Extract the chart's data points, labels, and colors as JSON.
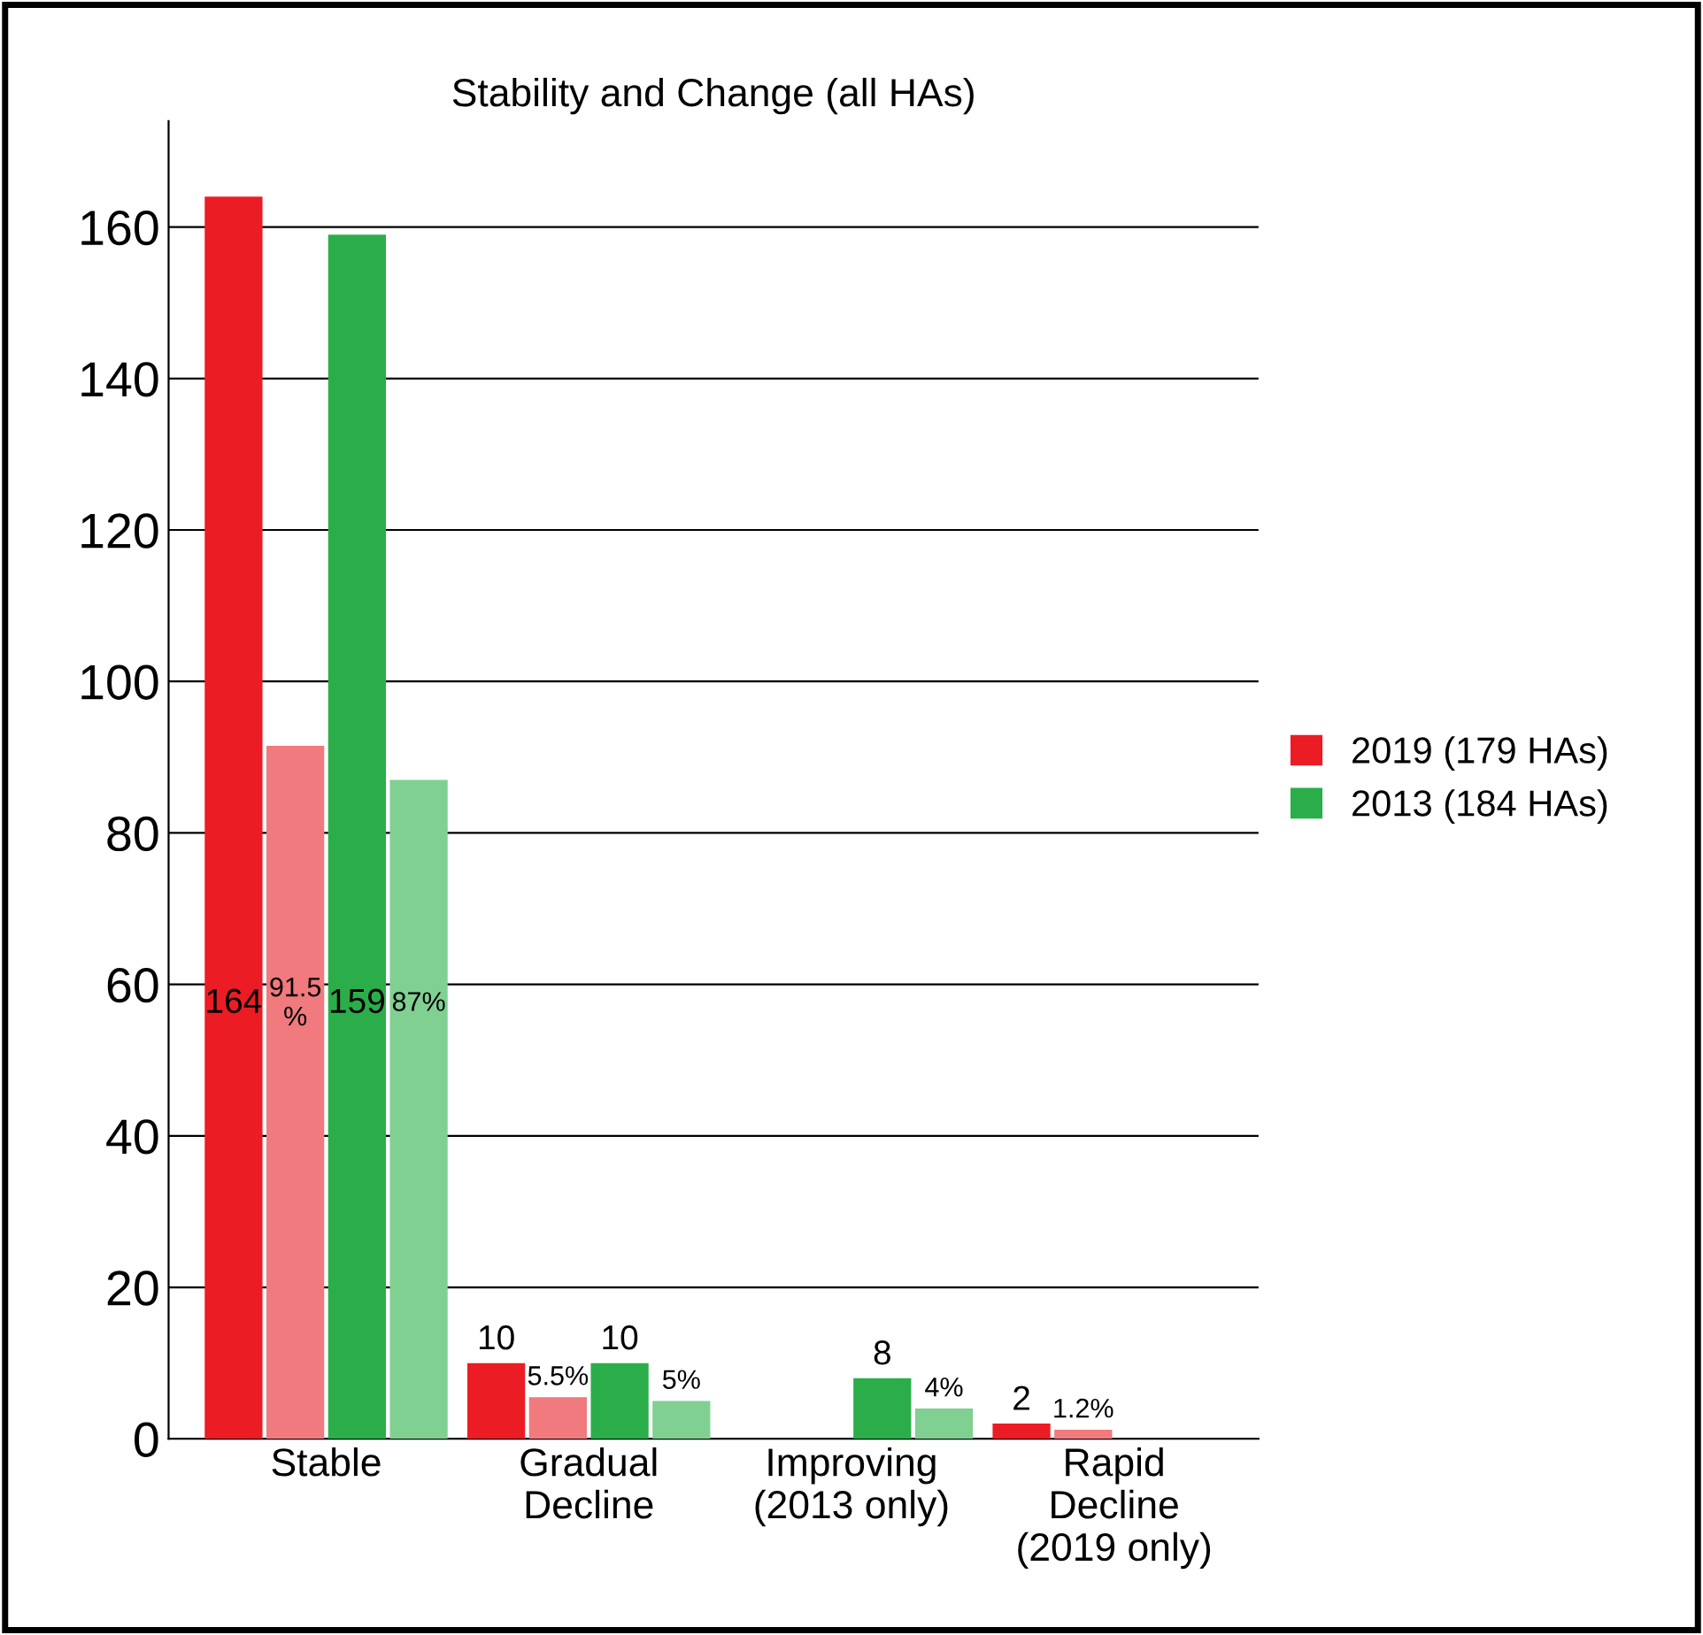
{
  "chart_data": {
    "type": "bar",
    "title": "Stability and Change (all HAs)",
    "categories": [
      "Stable",
      "Gradual\nDecline",
      "Improving\n(2013 only)",
      "Rapid\nDecline\n(2019 only)"
    ],
    "series": [
      {
        "name": "2019 (179 HAs)",
        "color": "#ec1c24",
        "values": [
          164,
          10,
          null,
          2
        ],
        "value_labels": [
          "164",
          "10",
          null,
          "2"
        ]
      },
      {
        "color": "#f07a7e",
        "values": [
          91.5,
          5.5,
          null,
          1.2
        ],
        "value_labels": [
          "91.5 %",
          "5.5%",
          null,
          "1.2%"
        ]
      },
      {
        "name": "2013 (184 HAs)",
        "color": "#2bae4a",
        "values": [
          159,
          10,
          8,
          null
        ],
        "value_labels": [
          "159",
          "10",
          "8",
          null
        ]
      },
      {
        "color": "#80d092",
        "values": [
          87,
          5,
          4,
          null
        ],
        "value_labels": [
          "87%",
          "5%",
          "4%",
          null
        ]
      }
    ],
    "ylim": [
      0,
      174
    ],
    "yticks": [
      0,
      20,
      40,
      60,
      80,
      100,
      120,
      140,
      160
    ],
    "grid": "y",
    "legend": "right"
  }
}
